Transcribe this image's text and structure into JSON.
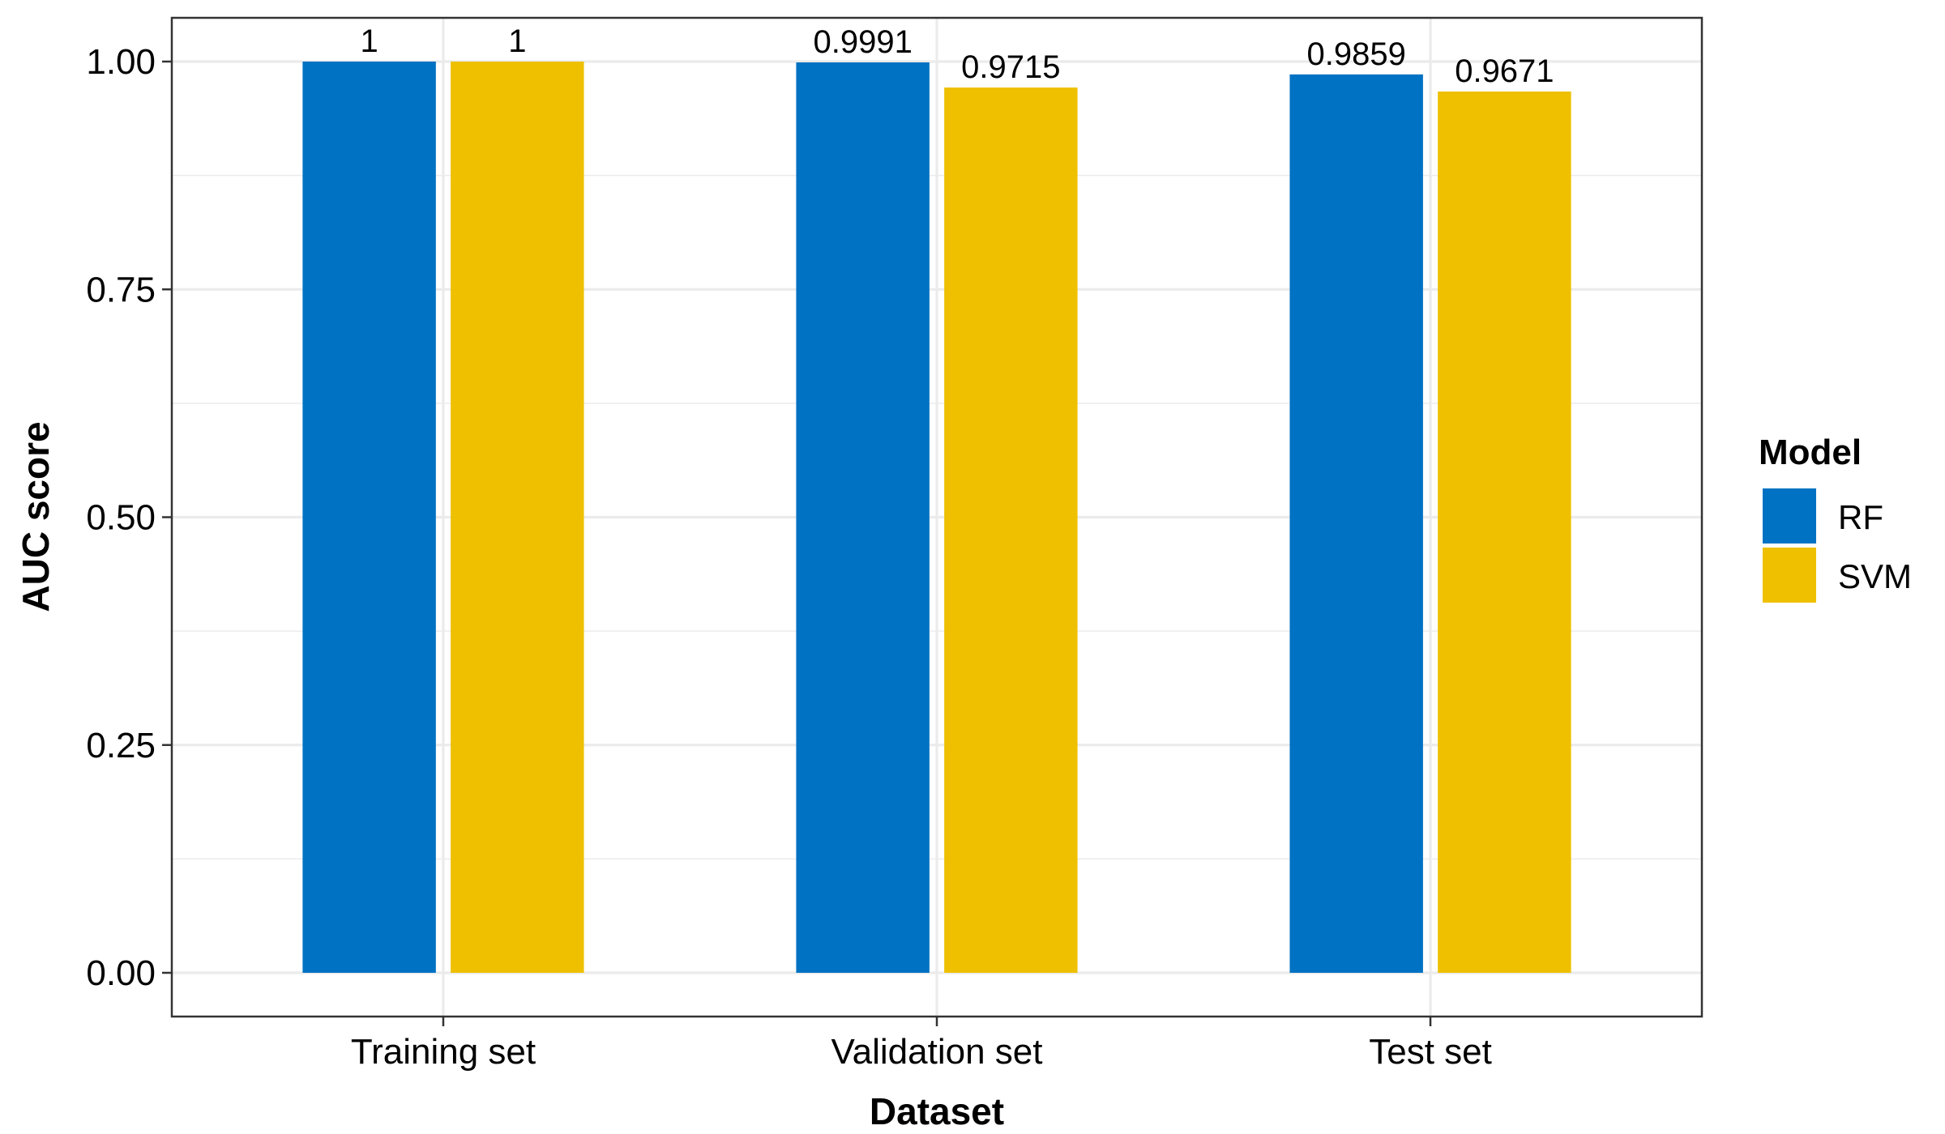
{
  "chart_data": {
    "type": "bar",
    "categories": [
      "Training set",
      "Validation set",
      "Test set"
    ],
    "series": [
      {
        "name": "RF",
        "color": "#0072C3",
        "values": [
          1,
          0.9991,
          0.9859
        ],
        "labels": [
          "1",
          "0.9991",
          "0.9859"
        ]
      },
      {
        "name": "SVM",
        "color": "#EEC000",
        "values": [
          1,
          0.9715,
          0.9671
        ],
        "labels": [
          "1",
          "0.9715",
          "0.9671"
        ]
      }
    ],
    "xlabel": "Dataset",
    "ylabel": "AUC score",
    "ylim": [
      -0.048,
      1.048
    ],
    "yticks": [
      0,
      0.25,
      0.5,
      0.75,
      1
    ],
    "ytick_labels": [
      "0.00",
      "0.25",
      "0.50",
      "0.75",
      "1.00"
    ],
    "grid": true,
    "legend": {
      "title": "Model",
      "position": "right"
    },
    "colors": {
      "grid": "#EBEBEB",
      "panel_border": "#333333",
      "background": "#FFFFFF"
    }
  }
}
